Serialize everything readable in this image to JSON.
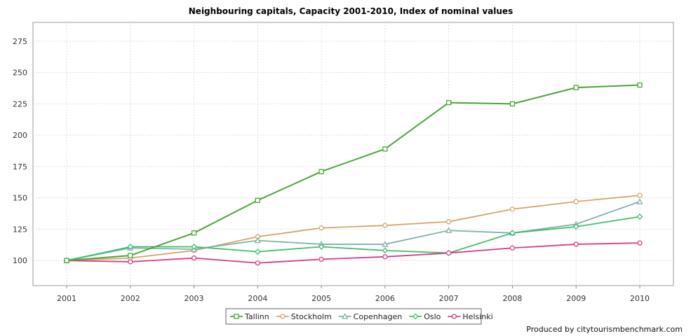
{
  "chart_data": {
    "type": "line",
    "title": "Neighbouring capitals, Capacity 2001-2010, Index of nominal values",
    "xlabel": "",
    "ylabel": "",
    "categories": [
      "2001",
      "2002",
      "2003",
      "2004",
      "2005",
      "2006",
      "2007",
      "2008",
      "2009",
      "2010"
    ],
    "ylim": [
      80,
      290
    ],
    "yticks": [
      100,
      125,
      150,
      175,
      200,
      225,
      250,
      275
    ],
    "grid": true,
    "legend_position": "bottom",
    "series": [
      {
        "name": "Tallinn",
        "color": "#4aa63a",
        "marker": "square",
        "values": [
          100,
          104,
          122,
          148,
          171,
          189,
          226,
          225,
          238,
          240
        ]
      },
      {
        "name": "Stockholm",
        "color": "#d6a46a",
        "marker": "circle",
        "values": [
          100,
          102,
          108,
          119,
          126,
          128,
          131,
          141,
          147,
          152
        ]
      },
      {
        "name": "Copenhagen",
        "color": "#7fb2a8",
        "marker": "triangle",
        "values": [
          100,
          110,
          109,
          116,
          113,
          113,
          124,
          122,
          129,
          147
        ]
      },
      {
        "name": "Oslo",
        "color": "#3fbf6a",
        "marker": "diamond",
        "values": [
          100,
          111,
          111,
          107,
          111,
          108,
          106,
          122,
          127,
          135
        ]
      },
      {
        "name": "Helsinki",
        "color": "#d63c8a",
        "marker": "circle",
        "values": [
          100,
          99,
          102,
          98,
          101,
          103,
          106,
          110,
          113,
          114
        ]
      }
    ]
  },
  "footer": {
    "credit": "Produced by citytourismbenchmark.com"
  }
}
